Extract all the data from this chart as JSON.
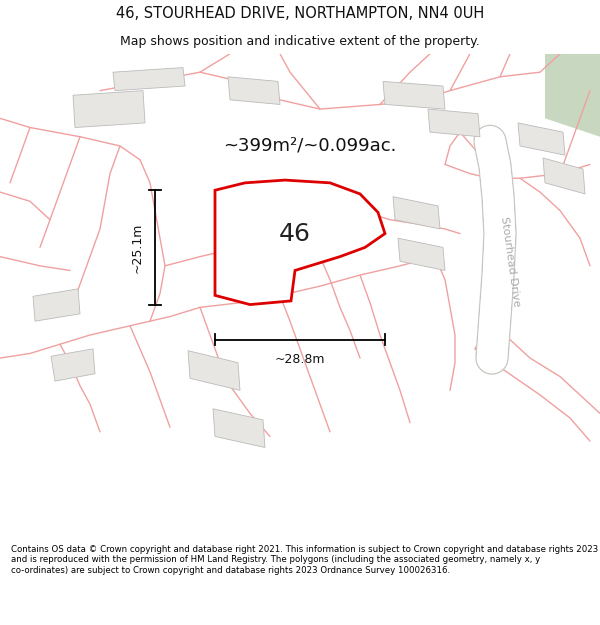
{
  "title_line1": "46, STOURHEAD DRIVE, NORTHAMPTON, NN4 0UH",
  "title_line2": "Map shows position and indicative extent of the property.",
  "area_label": "~399m²/~0.099ac.",
  "plot_number": "46",
  "width_label": "~28.8m",
  "height_label": "~25.1m",
  "road_label": "Stourhead Drive",
  "footer_text": "Contains OS data © Crown copyright and database right 2021. This information is subject to Crown copyright and database rights 2023 and is reproduced with the permission of HM Land Registry. The polygons (including the associated geometry, namely x, y co-ordinates) are subject to Crown copyright and database rights 2023 Ordnance Survey 100026316.",
  "bg_color": "#f7f6f4",
  "plot_fill": "#ffffff",
  "plot_edge": "#dd0000",
  "building_fill": "#e8e6e3",
  "building_edge": "#bbbbbb",
  "boundary_color": "#f0a0a0",
  "road_fill": "#f0eeeb",
  "road_stripe": "#e8e5e0",
  "green_color": "#c8d8c0",
  "dim_color": "#111111",
  "text_color": "#111111",
  "road_label_color": "#aaaaaa",
  "title_fontsize": 10.5,
  "subtitle_fontsize": 9.0,
  "footer_fontsize": 6.2,
  "area_fontsize": 13,
  "number_fontsize": 18,
  "dim_fontsize": 9,
  "road_label_fontsize": 8
}
